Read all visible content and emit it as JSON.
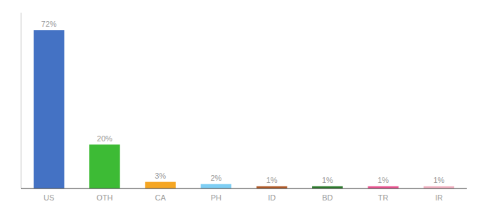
{
  "chart_data": {
    "type": "bar",
    "categories": [
      "US",
      "OTH",
      "CA",
      "PH",
      "ID",
      "BD",
      "TR",
      "IR"
    ],
    "values": [
      72,
      20,
      3,
      2,
      1,
      1,
      1,
      1
    ],
    "value_labels": [
      "72%",
      "20%",
      "3%",
      "2%",
      "1%",
      "1%",
      "1%",
      "1%"
    ],
    "colors": [
      "#4472c4",
      "#3dbb35",
      "#f5a623",
      "#7ecef4",
      "#b05a28",
      "#2d7a2d",
      "#e8538f",
      "#f0b0c0"
    ],
    "ylim": [
      0,
      80
    ],
    "data_labels": true,
    "tick_labels": "x",
    "grid": false
  }
}
